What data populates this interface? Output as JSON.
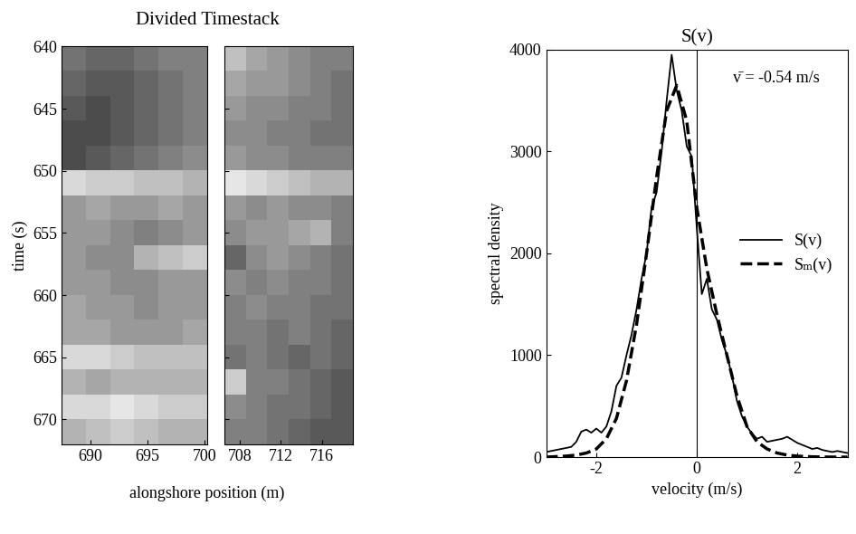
{
  "chart_data": [
    {
      "type": "heatmap",
      "title": "Divided Timestack",
      "xlabel": "alongshore position (m)",
      "ylabel": "time (s)",
      "ylim": [
        672,
        640
      ],
      "yticks": [
        640,
        645,
        650,
        655,
        660,
        665,
        670
      ],
      "color_range": [
        0,
        1
      ],
      "panels": [
        {
          "xlim": [
            687.5,
            700.2
          ],
          "xticks": [
            690,
            695,
            700
          ],
          "cells": [
            [
              0.45,
              0.4,
              0.4,
              0.45,
              0.5,
              0.5
            ],
            [
              0.4,
              0.35,
              0.35,
              0.4,
              0.45,
              0.5
            ],
            [
              0.35,
              0.3,
              0.35,
              0.4,
              0.45,
              0.5
            ],
            [
              0.3,
              0.3,
              0.35,
              0.4,
              0.45,
              0.5
            ],
            [
              0.3,
              0.35,
              0.4,
              0.45,
              0.5,
              0.55
            ],
            [
              0.85,
              0.8,
              0.8,
              0.75,
              0.75,
              0.7
            ],
            [
              0.6,
              0.65,
              0.6,
              0.6,
              0.65,
              0.6
            ],
            [
              0.6,
              0.6,
              0.55,
              0.5,
              0.55,
              0.6
            ],
            [
              0.6,
              0.55,
              0.55,
              0.7,
              0.75,
              0.8
            ],
            [
              0.6,
              0.6,
              0.55,
              0.55,
              0.6,
              0.6
            ],
            [
              0.65,
              0.6,
              0.6,
              0.55,
              0.6,
              0.6
            ],
            [
              0.65,
              0.65,
              0.6,
              0.6,
              0.6,
              0.65
            ],
            [
              0.85,
              0.85,
              0.8,
              0.75,
              0.75,
              0.75
            ],
            [
              0.7,
              0.65,
              0.7,
              0.7,
              0.7,
              0.7
            ],
            [
              0.85,
              0.85,
              0.9,
              0.85,
              0.8,
              0.8
            ],
            [
              0.7,
              0.75,
              0.8,
              0.75,
              0.7,
              0.7
            ]
          ]
        },
        {
          "xlim": [
            706.5,
            719
          ],
          "xticks": [
            708,
            712,
            716
          ],
          "cells": [
            [
              0.75,
              0.65,
              0.6,
              0.55,
              0.5,
              0.5
            ],
            [
              0.65,
              0.6,
              0.6,
              0.55,
              0.5,
              0.45
            ],
            [
              0.6,
              0.55,
              0.55,
              0.5,
              0.5,
              0.45
            ],
            [
              0.55,
              0.55,
              0.5,
              0.5,
              0.45,
              0.45
            ],
            [
              0.6,
              0.55,
              0.55,
              0.5,
              0.5,
              0.5
            ],
            [
              0.9,
              0.85,
              0.8,
              0.75,
              0.7,
              0.7
            ],
            [
              0.6,
              0.55,
              0.6,
              0.55,
              0.55,
              0.5
            ],
            [
              0.55,
              0.6,
              0.6,
              0.65,
              0.7,
              0.5
            ],
            [
              0.4,
              0.55,
              0.6,
              0.55,
              0.5,
              0.45
            ],
            [
              0.55,
              0.5,
              0.55,
              0.5,
              0.5,
              0.45
            ],
            [
              0.5,
              0.55,
              0.5,
              0.5,
              0.45,
              0.45
            ],
            [
              0.5,
              0.5,
              0.45,
              0.5,
              0.45,
              0.4
            ],
            [
              0.45,
              0.5,
              0.45,
              0.4,
              0.45,
              0.4
            ],
            [
              0.8,
              0.5,
              0.5,
              0.45,
              0.4,
              0.35
            ],
            [
              0.55,
              0.5,
              0.45,
              0.45,
              0.4,
              0.35
            ],
            [
              0.5,
              0.5,
              0.45,
              0.4,
              0.35,
              0.35
            ]
          ]
        }
      ]
    },
    {
      "type": "line",
      "title": "S(v)",
      "xlabel": "velocity (m/s)",
      "ylabel": "spectral density",
      "xlim": [
        -3,
        3
      ],
      "xticks": [
        -2,
        0,
        2
      ],
      "ylim": [
        0,
        4000
      ],
      "yticks": [
        0,
        1000,
        2000,
        3000,
        4000
      ],
      "vline": 0,
      "annotation": "v̄ = -0.54 m/s",
      "legend": "center right",
      "series": [
        {
          "name": "S(v)",
          "color": "#000000",
          "line_style": "solid",
          "x": [
            -3.0,
            -2.9,
            -2.8,
            -2.7,
            -2.6,
            -2.5,
            -2.4,
            -2.3,
            -2.2,
            -2.1,
            -2.0,
            -1.9,
            -1.8,
            -1.7,
            -1.6,
            -1.5,
            -1.4,
            -1.3,
            -1.2,
            -1.1,
            -1.0,
            -0.9,
            -0.8,
            -0.7,
            -0.6,
            -0.5,
            -0.4,
            -0.3,
            -0.2,
            -0.1,
            0.0,
            0.1,
            0.2,
            0.3,
            0.4,
            0.5,
            0.6,
            0.7,
            0.8,
            0.9,
            1.0,
            1.1,
            1.2,
            1.3,
            1.4,
            1.5,
            1.6,
            1.7,
            1.8,
            1.9,
            2.0,
            2.1,
            2.2,
            2.3,
            2.4,
            2.5,
            2.6,
            2.7,
            2.8,
            2.9,
            3.0
          ],
          "values": [
            50,
            60,
            70,
            80,
            90,
            100,
            150,
            250,
            270,
            240,
            280,
            240,
            300,
            450,
            700,
            780,
            1000,
            1200,
            1450,
            1750,
            2000,
            2450,
            2600,
            3000,
            3500,
            3950,
            3600,
            3400,
            3050,
            2950,
            2250,
            1600,
            1750,
            1450,
            1350,
            1150,
            1000,
            800,
            550,
            400,
            300,
            230,
            180,
            200,
            150,
            160,
            170,
            180,
            200,
            170,
            140,
            120,
            100,
            80,
            90,
            70,
            60,
            50,
            60,
            50,
            40
          ]
        },
        {
          "name": "Sₘ(v)",
          "color": "#000000",
          "line_style": "dashed",
          "x": [
            -3.0,
            -2.8,
            -2.6,
            -2.4,
            -2.2,
            -2.0,
            -1.8,
            -1.6,
            -1.4,
            -1.2,
            -1.0,
            -0.8,
            -0.6,
            -0.4,
            -0.2,
            0.0,
            0.2,
            0.4,
            0.6,
            0.8,
            1.0,
            1.2,
            1.4,
            1.6,
            1.8,
            2.0,
            2.2,
            2.4,
            2.6,
            2.8,
            3.0
          ],
          "values": [
            0,
            5,
            10,
            20,
            40,
            80,
            180,
            380,
            750,
            1300,
            2000,
            2750,
            3400,
            3650,
            3300,
            2450,
            1850,
            1400,
            1000,
            600,
            300,
            150,
            80,
            40,
            20,
            10,
            5,
            2,
            1,
            0,
            0
          ]
        }
      ]
    }
  ]
}
